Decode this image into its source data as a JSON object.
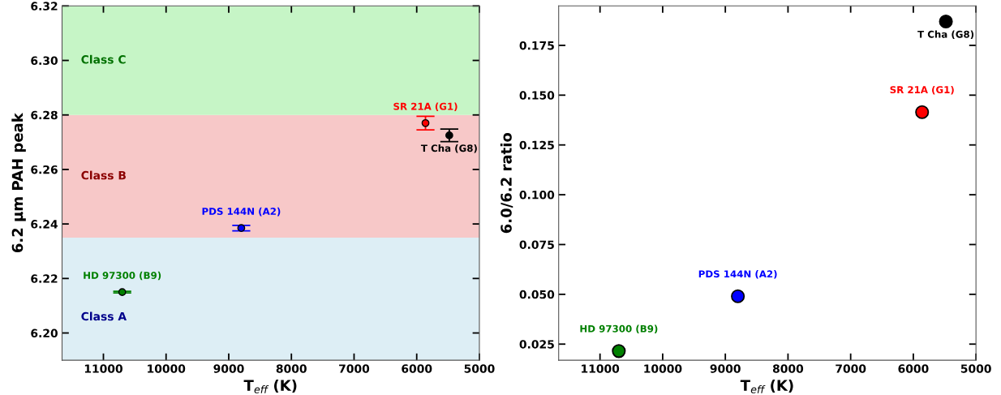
{
  "chart_data": [
    {
      "type": "scatter",
      "xlabel": "T$_{eff}$ (K)",
      "ylabel": "6.2 μm PAH peak",
      "xlim": [
        11660,
        5000
      ],
      "xticks": [
        11000,
        10000,
        9000,
        8000,
        7000,
        6000,
        5000
      ],
      "ylim": [
        6.19,
        6.32
      ],
      "yticks": [
        {
          "value": 6.2,
          "label": "6.20"
        },
        6.22,
        6.24,
        6.26,
        6.28,
        {
          "value": 6.3,
          "label": "6.30"
        },
        6.32
      ],
      "grid": false,
      "marker": "circle",
      "series": [
        {
          "name": "HD 97300 (B9)",
          "color": "#008000",
          "x": [
            10700
          ],
          "values": [
            6.215
          ],
          "errors": [
            0.0003
          ]
        },
        {
          "name": "PDS 144N (A2)",
          "color": "#0000ff",
          "x": [
            8800
          ],
          "values": [
            6.2385
          ],
          "errors": [
            0.001
          ]
        },
        {
          "name": "SR 21A (G1)",
          "color": "#ff0000",
          "x": [
            5860
          ],
          "values": [
            6.277
          ],
          "errors": [
            0.0025
          ]
        },
        {
          "name": "T Cha (G8)",
          "color": "#000000",
          "x": [
            5480
          ],
          "values": [
            6.2725
          ],
          "errors": [
            0.0023
          ]
        }
      ],
      "bands": [
        {
          "axis": "y",
          "from": 6.19,
          "to": 6.235,
          "label": "Class A",
          "color": "#ddeef5"
        },
        {
          "axis": "y",
          "from": 6.235,
          "to": 6.28,
          "label": "Class B",
          "color": "#f7c8c8"
        },
        {
          "axis": "y",
          "from": 6.28,
          "to": 6.32,
          "label": "Class C",
          "color": "#c6f5c6"
        }
      ]
    },
    {
      "type": "scatter",
      "xlabel": "T$_{eff}$ (K)",
      "ylabel": "6.0/6.2 ratio",
      "xlim": [
        11660,
        5000
      ],
      "xticks": [
        11000,
        10000,
        9000,
        8000,
        7000,
        6000,
        5000
      ],
      "ylim": [
        0.0169,
        0.1948
      ],
      "yticks": [
        0.025,
        {
          "value": 0.05,
          "label": "0.050"
        },
        0.075,
        {
          "value": 0.1,
          "label": "0.100"
        },
        0.125,
        {
          "value": 0.15,
          "label": "0.150"
        },
        0.175
      ],
      "grid": false,
      "marker": "circle",
      "series": [
        {
          "name": "HD 97300 (B9)",
          "color": "#008000",
          "x": [
            10700
          ],
          "values": [
            0.0215
          ]
        },
        {
          "name": "PDS 144N (A2)",
          "color": "#0000ff",
          "x": [
            8800
          ],
          "values": [
            0.049
          ]
        },
        {
          "name": "SR 21A (G1)",
          "color": "#ff0000",
          "x": [
            5860
          ],
          "values": [
            0.1415
          ]
        },
        {
          "name": "T Cha (G8)",
          "color": "#000000",
          "x": [
            5480
          ],
          "values": [
            0.187
          ]
        }
      ]
    }
  ]
}
